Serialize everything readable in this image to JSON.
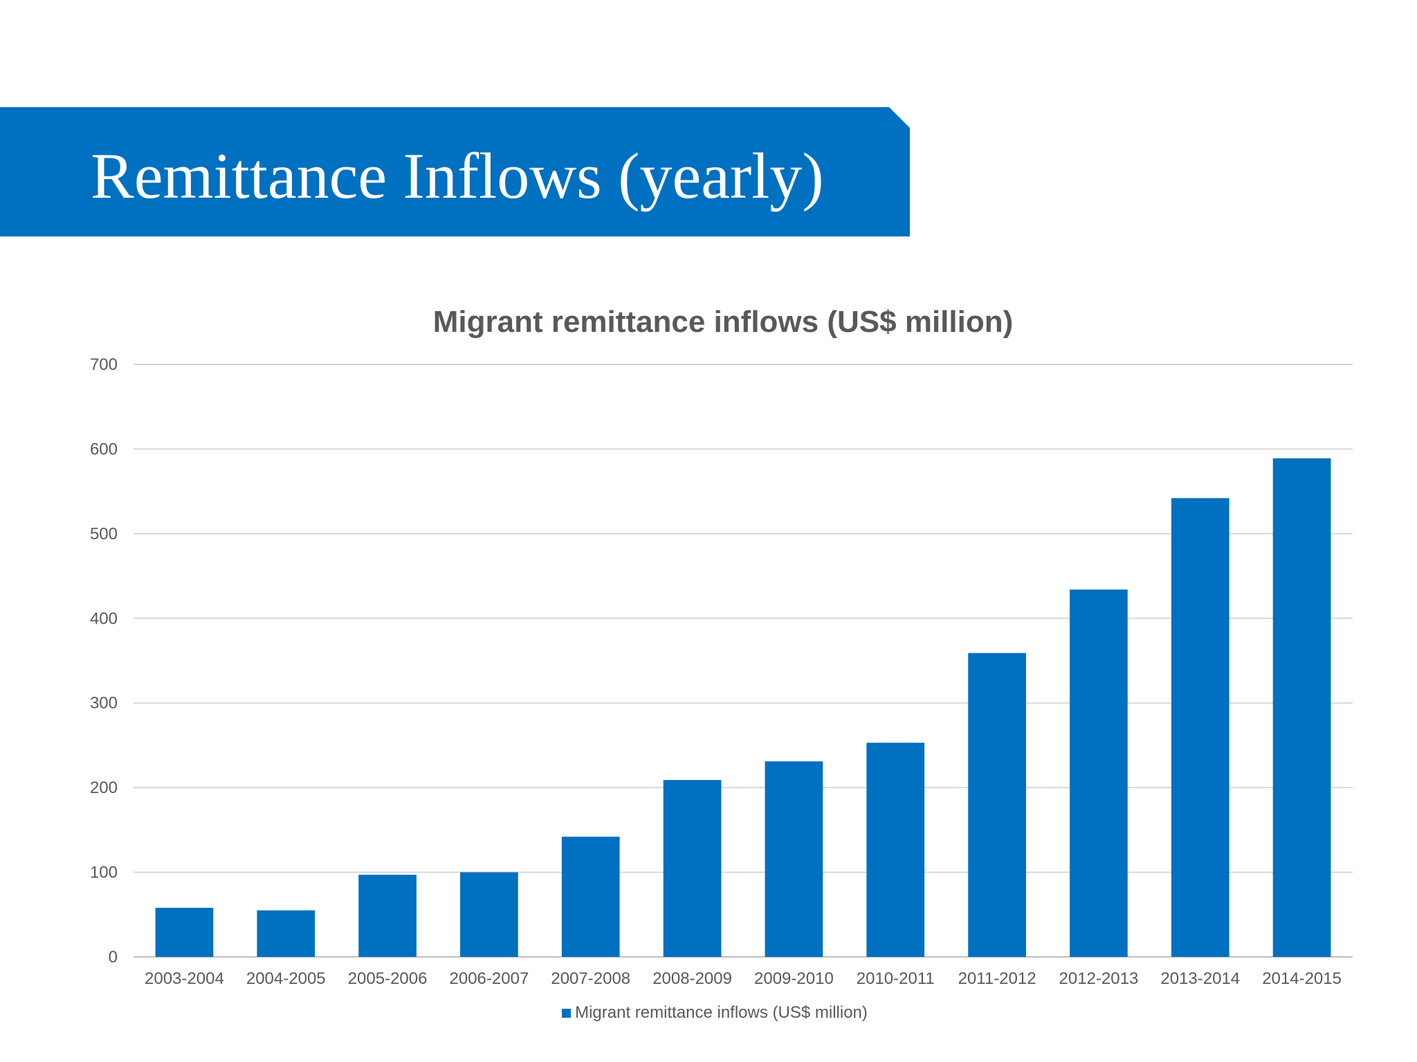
{
  "slide": {
    "title": "Remittance Inflows (yearly)"
  },
  "colors": {
    "banner": "#0070c0",
    "bar": "#0070c0",
    "gridline": "#d9d9d9",
    "text": "#595959"
  },
  "chart_data": {
    "type": "bar",
    "title": "Migrant remittance inflows (US$ million)",
    "xlabel": "",
    "ylabel": "",
    "ylim": [
      0,
      700
    ],
    "yticks": [
      0,
      100,
      200,
      300,
      400,
      500,
      600,
      700
    ],
    "grid": true,
    "legend_position": "bottom",
    "categories": [
      "2003-2004",
      "2004-2005",
      "2005-2006",
      "2006-2007",
      "2007-2008",
      "2008-2009",
      "2009-2010",
      "2010-2011",
      "2011-2012",
      "2012-2013",
      "2013-2014",
      "2014-2015"
    ],
    "series": [
      {
        "name": "Migrant remittance inflows (US$ million)",
        "values": [
          58,
          55,
          97,
          100,
          142,
          209,
          231,
          253,
          359,
          434,
          542,
          589
        ]
      }
    ]
  }
}
